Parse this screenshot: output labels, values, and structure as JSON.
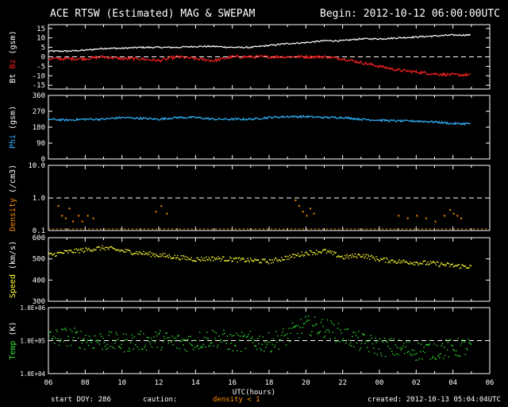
{
  "header": {
    "title": "ACE RTSW (Estimated) MAG & SWEPAM",
    "begin": "Begin: 2012-10-12 06:00:00UTC"
  },
  "footer": {
    "start_doy": "start DOY: 286",
    "caution": "caution:",
    "density_note": "density < 1",
    "created": "created: 2012-10-13 05:04:04UTC"
  },
  "colors": {
    "bt": "#ffffff",
    "bz": "#ff2020",
    "phi": "#33b5ff",
    "density": "#ff8c00",
    "speed": "#ffff33",
    "temp": "#33e033",
    "axis": "#ffffff",
    "dashed": "#ffffff"
  },
  "chart_data": [
    {
      "type": "line",
      "title": "ACE RTSW (Estimated) MAG & SWEPAM",
      "ylabel_parts": [
        "Bt",
        "Bz",
        "(gsm)"
      ],
      "ylim": [
        -17,
        17
      ],
      "yticks": [
        15,
        10,
        5,
        0,
        -5,
        -10,
        -15
      ],
      "reference_line": 0,
      "x": [
        6,
        7,
        8,
        9,
        10,
        11,
        12,
        13,
        14,
        15,
        16,
        17,
        18,
        19,
        20,
        21,
        22,
        23,
        24,
        25,
        26,
        27,
        28,
        29
      ],
      "series": [
        {
          "name": "Bt",
          "values": [
            3,
            3,
            3.5,
            4.5,
            4.5,
            5,
            5,
            5,
            5.5,
            5.5,
            5,
            5,
            6,
            7,
            7.5,
            8.5,
            8.5,
            9.5,
            9.5,
            10,
            10.5,
            11,
            11.5,
            11.5
          ]
        },
        {
          "name": "Bz",
          "values": [
            -1,
            -1,
            -1,
            0,
            -1,
            -1,
            -2,
            0,
            -1,
            -2,
            0,
            0,
            0,
            0,
            0,
            0,
            -1,
            -3,
            -5,
            -7,
            -8,
            -9,
            -9.5,
            -9.5
          ]
        }
      ]
    },
    {
      "type": "line",
      "ylabel": "Phi (gsm)",
      "ylim": [
        0,
        360
      ],
      "yticks": [
        360,
        270,
        180,
        90,
        0
      ],
      "x": [
        6,
        7,
        8,
        9,
        10,
        11,
        12,
        13,
        14,
        15,
        16,
        17,
        18,
        19,
        20,
        21,
        22,
        23,
        24,
        25,
        26,
        27,
        28,
        29
      ],
      "series": [
        {
          "name": "Phi",
          "values": [
            225,
            220,
            225,
            225,
            235,
            230,
            225,
            235,
            235,
            225,
            225,
            225,
            235,
            240,
            240,
            235,
            235,
            225,
            220,
            215,
            215,
            210,
            200,
            200
          ]
        }
      ]
    },
    {
      "type": "scatter",
      "ylabel": "Density (/cm3)",
      "yscale": "log",
      "ylim": [
        0.1,
        10
      ],
      "ytick_labels": [
        "10.0",
        "1.0",
        "0.1"
      ],
      "reference_line": 1.0,
      "points": [
        [
          6.5,
          0.6
        ],
        [
          6.7,
          0.3
        ],
        [
          6.9,
          0.25
        ],
        [
          7.1,
          0.5
        ],
        [
          7.3,
          0.2
        ],
        [
          7.6,
          0.3
        ],
        [
          7.8,
          0.2
        ],
        [
          8.1,
          0.3
        ],
        [
          8.4,
          0.25
        ],
        [
          11.8,
          0.4
        ],
        [
          12.1,
          0.6
        ],
        [
          12.4,
          0.35
        ],
        [
          19.4,
          0.9
        ],
        [
          19.6,
          0.6
        ],
        [
          19.8,
          0.4
        ],
        [
          20.0,
          0.3
        ],
        [
          20.2,
          0.5
        ],
        [
          20.4,
          0.35
        ],
        [
          25.0,
          0.3
        ],
        [
          25.5,
          0.25
        ],
        [
          26.0,
          0.3
        ],
        [
          26.5,
          0.25
        ],
        [
          27.0,
          0.2
        ],
        [
          27.5,
          0.3
        ],
        [
          27.8,
          0.45
        ],
        [
          28.0,
          0.35
        ],
        [
          28.2,
          0.3
        ],
        [
          28.4,
          0.25
        ]
      ]
    },
    {
      "type": "line",
      "ylabel": "Speed (km/s)",
      "ylim": [
        300,
        600
      ],
      "yticks": [
        600,
        500,
        400,
        300
      ],
      "x": [
        6,
        7,
        8,
        9,
        10,
        11,
        12,
        13,
        14,
        15,
        16,
        17,
        18,
        19,
        20,
        21,
        22,
        23,
        24,
        25,
        26,
        27,
        28,
        29
      ],
      "series": [
        {
          "name": "Speed",
          "values": [
            520,
            535,
            545,
            555,
            540,
            530,
            520,
            510,
            500,
            505,
            500,
            495,
            490,
            510,
            530,
            540,
            510,
            520,
            500,
            490,
            485,
            480,
            470,
            465
          ]
        }
      ]
    },
    {
      "type": "scatter",
      "ylabel": "Temp (K)",
      "yscale": "log",
      "ylim": [
        10000,
        1000000
      ],
      "ytick_labels": [
        "1.0E+06",
        "1.0E+05",
        "1.0E+04"
      ],
      "reference_line": 100000,
      "x": [
        6,
        7,
        8,
        9,
        10,
        11,
        12,
        13,
        14,
        15,
        16,
        17,
        18,
        19,
        20,
        21,
        22,
        23,
        24,
        25,
        26,
        27,
        28,
        29
      ],
      "series": [
        {
          "name": "Temp",
          "values": [
            120000,
            140000,
            110000,
            100000,
            90000,
            100000,
            110000,
            90000,
            100000,
            130000,
            90000,
            100000,
            90000,
            140000,
            300000,
            250000,
            150000,
            90000,
            70000,
            60000,
            50000,
            55000,
            60000,
            70000
          ]
        }
      ]
    }
  ],
  "x_axis": {
    "label": "UTC(hours)",
    "range": [
      6,
      30
    ],
    "tick_labels": [
      "06",
      "08",
      "10",
      "12",
      "14",
      "16",
      "18",
      "20",
      "22",
      "00",
      "02",
      "04",
      "06"
    ]
  }
}
